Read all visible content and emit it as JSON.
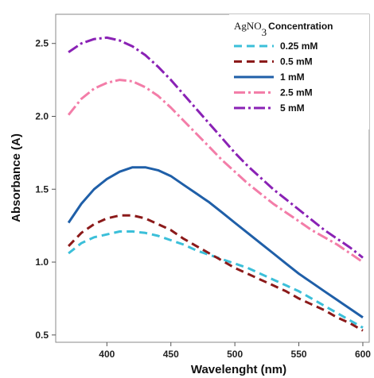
{
  "chart_data": {
    "type": "line",
    "xlabel": "Wavelenght (nm)",
    "ylabel": "Absorbance (A)",
    "xlim": [
      360,
      605
    ],
    "ylim": [
      0.45,
      2.7
    ],
    "x_ticks": [
      400,
      450,
      500,
      550,
      600
    ],
    "y_ticks": [
      0.5,
      1.0,
      1.5,
      2.0,
      2.5
    ],
    "x_tick_labels": [
      "400",
      "450",
      "500",
      "550",
      "600"
    ],
    "y_tick_labels": [
      "0.5",
      "1.0",
      "1.5",
      "2.0",
      "2.5"
    ],
    "grid": false,
    "legend": {
      "placement": "top-right",
      "title_part1": "AgNO",
      "title_sub": "3",
      "title_part2": "Concentration"
    },
    "series": [
      {
        "name": "0.25 mM",
        "color": "#3bbfd9",
        "dash": "dashed",
        "x": [
          370,
          380,
          390,
          400,
          410,
          420,
          430,
          440,
          450,
          460,
          470,
          480,
          490,
          500,
          510,
          520,
          530,
          540,
          550,
          560,
          570,
          580,
          590,
          600
        ],
        "y": [
          1.06,
          1.13,
          1.17,
          1.19,
          1.21,
          1.21,
          1.2,
          1.18,
          1.15,
          1.12,
          1.08,
          1.05,
          1.02,
          0.99,
          0.96,
          0.92,
          0.88,
          0.84,
          0.8,
          0.75,
          0.7,
          0.65,
          0.6,
          0.55
        ]
      },
      {
        "name": "0.5 mM",
        "color": "#8b1a1a",
        "dash": "dashed",
        "x": [
          370,
          380,
          390,
          400,
          410,
          420,
          430,
          440,
          450,
          460,
          470,
          480,
          490,
          500,
          510,
          520,
          530,
          540,
          550,
          560,
          570,
          580,
          590,
          600
        ],
        "y": [
          1.11,
          1.2,
          1.26,
          1.3,
          1.32,
          1.32,
          1.3,
          1.26,
          1.22,
          1.16,
          1.11,
          1.06,
          1.01,
          0.96,
          0.92,
          0.88,
          0.84,
          0.8,
          0.75,
          0.71,
          0.67,
          0.62,
          0.58,
          0.53
        ]
      },
      {
        "name": "1 mM",
        "color": "#1f5fa8",
        "dash": "solid",
        "x": [
          370,
          380,
          390,
          400,
          410,
          420,
          430,
          440,
          450,
          460,
          470,
          480,
          490,
          500,
          510,
          520,
          530,
          540,
          550,
          560,
          570,
          580,
          590,
          600
        ],
        "y": [
          1.27,
          1.4,
          1.5,
          1.57,
          1.62,
          1.65,
          1.65,
          1.63,
          1.59,
          1.53,
          1.47,
          1.41,
          1.34,
          1.27,
          1.2,
          1.13,
          1.06,
          0.99,
          0.92,
          0.86,
          0.8,
          0.74,
          0.68,
          0.62
        ]
      },
      {
        "name": "2.5 mM",
        "color": "#f37da8",
        "dash": "dashdot",
        "x": [
          370,
          380,
          390,
          400,
          410,
          420,
          430,
          440,
          450,
          460,
          470,
          480,
          490,
          500,
          510,
          520,
          530,
          540,
          550,
          560,
          570,
          580,
          590,
          600
        ],
        "y": [
          2.01,
          2.12,
          2.19,
          2.23,
          2.25,
          2.24,
          2.2,
          2.14,
          2.06,
          1.97,
          1.88,
          1.79,
          1.7,
          1.62,
          1.54,
          1.47,
          1.4,
          1.34,
          1.28,
          1.22,
          1.17,
          1.12,
          1.06,
          1.0
        ]
      },
      {
        "name": "5 mM",
        "color": "#8a22b5",
        "dash": "dashdot",
        "x": [
          370,
          380,
          390,
          400,
          410,
          420,
          430,
          440,
          450,
          460,
          470,
          480,
          490,
          500,
          510,
          520,
          530,
          540,
          550,
          560,
          570,
          580,
          590,
          600
        ],
        "y": [
          2.44,
          2.5,
          2.53,
          2.54,
          2.52,
          2.48,
          2.42,
          2.34,
          2.25,
          2.15,
          2.05,
          1.95,
          1.85,
          1.75,
          1.66,
          1.58,
          1.5,
          1.43,
          1.36,
          1.29,
          1.22,
          1.16,
          1.1,
          1.03
        ]
      }
    ]
  }
}
